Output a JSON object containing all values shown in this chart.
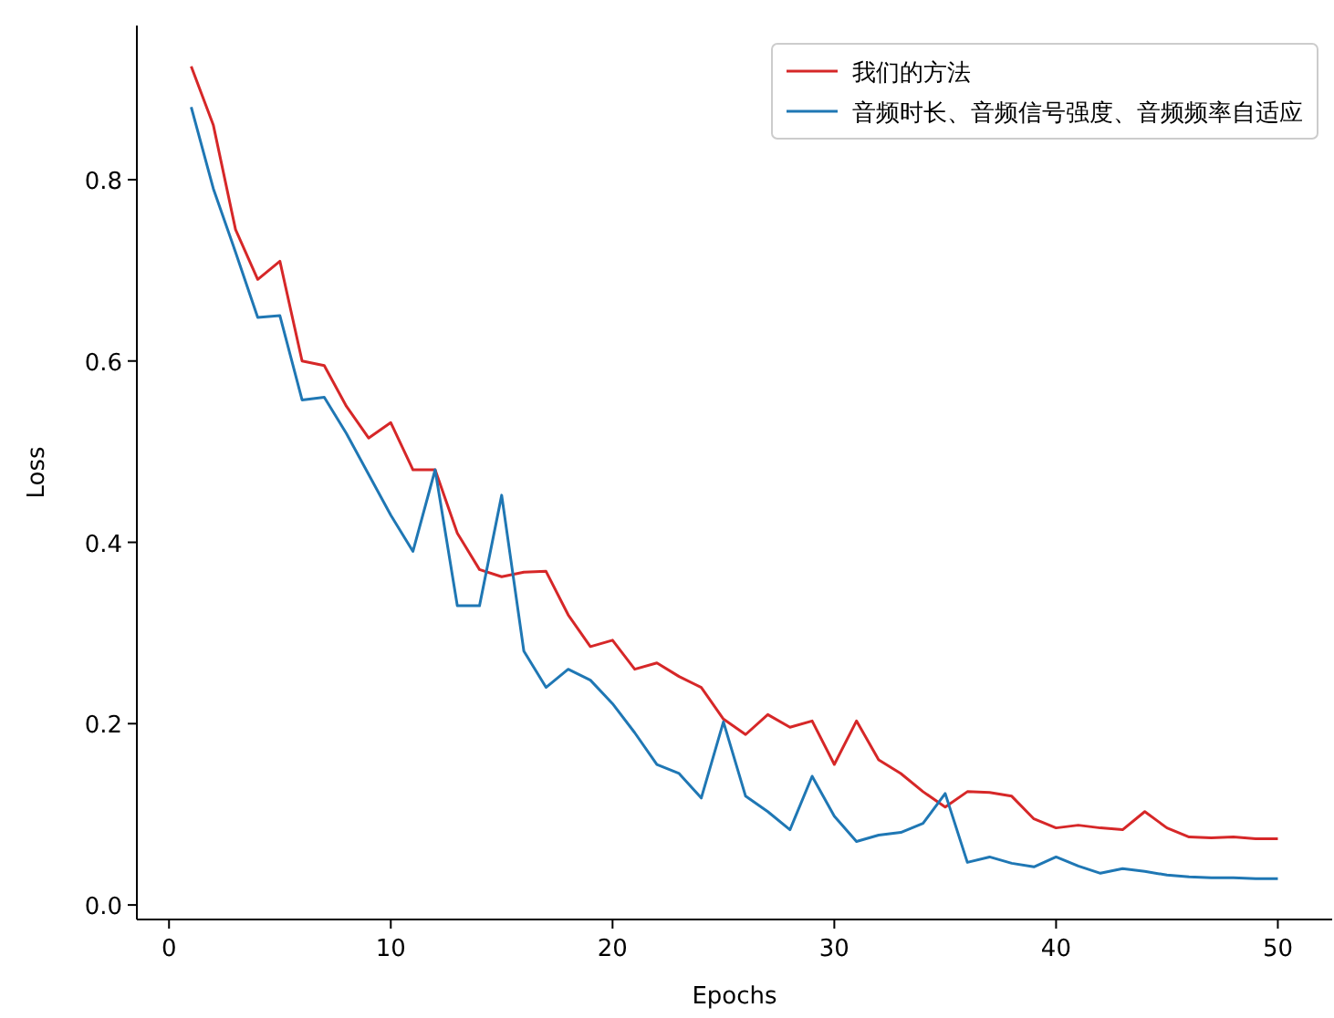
{
  "chart_data": {
    "type": "line",
    "xlabel": "Epochs",
    "ylabel": "Loss",
    "x": [
      1,
      2,
      3,
      4,
      5,
      6,
      7,
      8,
      9,
      10,
      11,
      12,
      13,
      14,
      15,
      16,
      17,
      18,
      19,
      20,
      21,
      22,
      23,
      24,
      25,
      26,
      27,
      28,
      29,
      30,
      31,
      32,
      33,
      34,
      35,
      36,
      37,
      38,
      39,
      40,
      41,
      42,
      43,
      44,
      45,
      46,
      47,
      48,
      49,
      50
    ],
    "series": [
      {
        "name": "我们的方法",
        "color": "#d62728",
        "values": [
          0.925,
          0.86,
          0.745,
          0.69,
          0.71,
          0.6,
          0.595,
          0.55,
          0.515,
          0.532,
          0.48,
          0.48,
          0.41,
          0.37,
          0.362,
          0.367,
          0.368,
          0.32,
          0.285,
          0.292,
          0.26,
          0.267,
          0.252,
          0.24,
          0.205,
          0.188,
          0.21,
          0.196,
          0.203,
          0.155,
          0.203,
          0.16,
          0.145,
          0.125,
          0.108,
          0.125,
          0.124,
          0.12,
          0.095,
          0.085,
          0.088,
          0.085,
          0.083,
          0.103,
          0.085,
          0.075,
          0.074,
          0.075,
          0.073,
          0.073
        ]
      },
      {
        "name": "音频时长、音频信号强度、音频频率自适应",
        "color": "#1f77b4",
        "values": [
          0.88,
          0.79,
          0.72,
          0.648,
          0.65,
          0.557,
          0.56,
          0.52,
          0.475,
          0.43,
          0.39,
          0.48,
          0.33,
          0.33,
          0.452,
          0.28,
          0.24,
          0.26,
          0.248,
          0.222,
          0.19,
          0.155,
          0.145,
          0.118,
          0.202,
          0.12,
          0.103,
          0.083,
          0.142,
          0.098,
          0.07,
          0.077,
          0.08,
          0.09,
          0.123,
          0.047,
          0.053,
          0.046,
          0.042,
          0.053,
          0.043,
          0.035,
          0.04,
          0.037,
          0.033,
          0.031,
          0.03,
          0.03,
          0.029,
          0.029
        ]
      }
    ],
    "xlim": [
      -1.45,
      52.45
    ],
    "ylim": [
      -0.016,
      0.97
    ],
    "xticks": [
      0,
      10,
      20,
      30,
      40,
      50
    ],
    "yticks": [
      {
        "value": 0,
        "label": "0.0"
      },
      {
        "value": 0.2,
        "label": "0.2"
      },
      {
        "value": 0.4,
        "label": "0.4"
      },
      {
        "value": 0.6,
        "label": "0.6"
      },
      {
        "value": 0.8,
        "label": "0.8"
      }
    ],
    "legend": "top right",
    "grid": false,
    "marker": "none",
    "line_style": "solid"
  }
}
